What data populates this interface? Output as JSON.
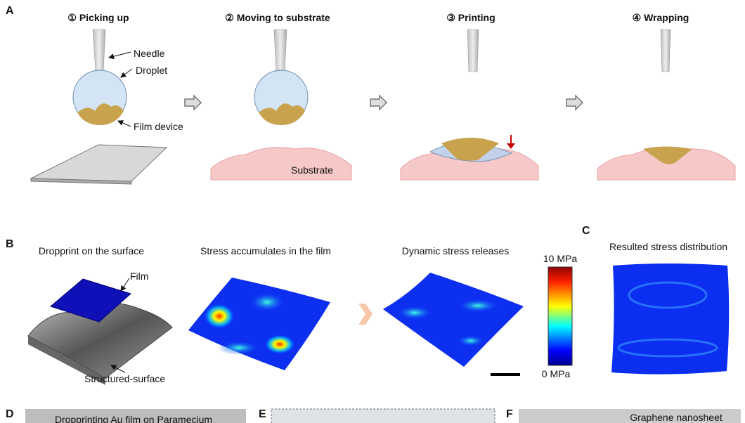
{
  "panel_a": {
    "label": "A",
    "steps": [
      "① Picking up",
      "② Moving to substrate",
      "③ Printing",
      "④ Wrapping"
    ],
    "annotations": {
      "needle": "Needle",
      "droplet": "Droplet",
      "film_device": "Film device",
      "substrate": "Substrate"
    }
  },
  "panel_b": {
    "label": "B",
    "titles": [
      "Dropprint on the surface",
      "Stress accumulates in the film",
      "Dynamic stress releases"
    ],
    "annotations": {
      "film": "Film",
      "structured_surface": "Structured-surface"
    },
    "colorbar": {
      "max": "10 MPa",
      "min": "0 MPa"
    }
  },
  "panel_c": {
    "label": "C",
    "title": "Resulted stress distribution"
  },
  "panel_d": {
    "label": "D",
    "caption": "Dropprinting Au film on Paramecium"
  },
  "panel_e": {
    "label": "E"
  },
  "panel_f": {
    "label": "F",
    "caption": "Graphene nanosheet"
  }
}
